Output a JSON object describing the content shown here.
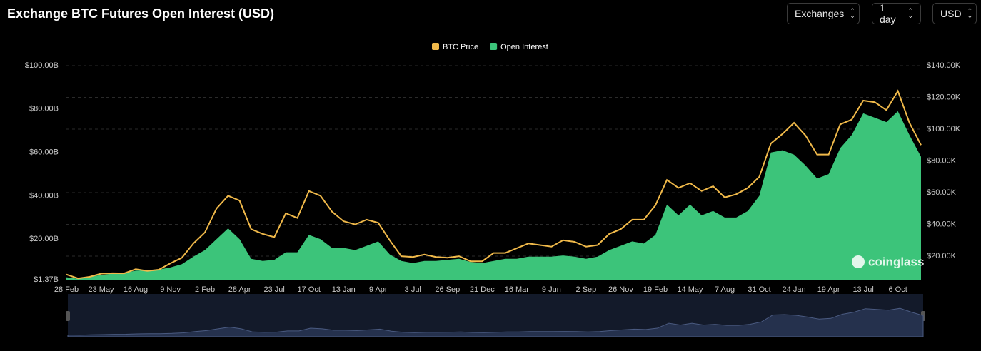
{
  "controls": [
    "Exchanges",
    "1 day",
    "USD"
  ],
  "chart_data": {
    "type": "line",
    "title": "Exchange BTC Futures Open Interest (USD)",
    "watermark": "coinglass",
    "categories": [
      "28 Feb",
      null,
      null,
      "23 May",
      null,
      null,
      "16 Aug",
      null,
      null,
      "9 Nov",
      null,
      null,
      "2 Feb",
      null,
      null,
      "28 Apr",
      null,
      null,
      "23 Jul",
      null,
      null,
      "17 Oct",
      null,
      null,
      "13 Jan",
      null,
      null,
      "9 Apr",
      null,
      null,
      "3 Jul",
      null,
      null,
      "26 Sep",
      null,
      null,
      "21 Dec",
      null,
      null,
      "16 Mar",
      null,
      null,
      "9 Jun",
      null,
      null,
      "2 Sep",
      null,
      null,
      "26 Nov",
      null,
      null,
      "19 Feb",
      null,
      null,
      "14 May",
      null,
      null,
      "7 Aug",
      null,
      null,
      "31 Oct",
      null,
      null,
      "24 Jan",
      null,
      null,
      "19 Apr",
      null,
      null,
      "13 Jul",
      null,
      null,
      "6 Oct",
      null,
      null
    ],
    "series": [
      {
        "name": "BTC Price",
        "color": "#f0b94a",
        "axis": "y2",
        "values": [
          8.5,
          6,
          7,
          9,
          9.3,
          9.2,
          11.8,
          10.7,
          11.5,
          15.5,
          19,
          28,
          35,
          50,
          58,
          55,
          37,
          34,
          32,
          47,
          44,
          61,
          58,
          48,
          42,
          40,
          43,
          41,
          30,
          20,
          19.5,
          21,
          19.5,
          19,
          20,
          16.8,
          16.8,
          22,
          22,
          25,
          28,
          27,
          26,
          30,
          29,
          26,
          27,
          34,
          37,
          43,
          43,
          52,
          68,
          63,
          66,
          61,
          64,
          57,
          59,
          63,
          70,
          91,
          97,
          104,
          96,
          84,
          84,
          103,
          106,
          118,
          117,
          112,
          124,
          104,
          90
        ]
      },
      {
        "name": "Open Interest",
        "color": "#3cc47a",
        "values": [
          2.5,
          1.8,
          2.8,
          3.5,
          4.2,
          4.5,
          5.5,
          5.8,
          6,
          7,
          8.5,
          12,
          15,
          20,
          25,
          20,
          11,
          10,
          10.5,
          14,
          14,
          22,
          20,
          16,
          16,
          15,
          17,
          19,
          13,
          10,
          9,
          10,
          10,
          10.5,
          11,
          9.5,
          9,
          10,
          11,
          11,
          12,
          12,
          12,
          12.5,
          12,
          11,
          12,
          15,
          17,
          19,
          18,
          22,
          36,
          31,
          36,
          31,
          33,
          30,
          30,
          33,
          40,
          60,
          61,
          59,
          54,
          48,
          50,
          62,
          68,
          78,
          76,
          74,
          79,
          68,
          58
        ]
      }
    ],
    "ylim": [
      1.37,
      100
    ],
    "yticks": [
      {
        "value": 1.37,
        "label": "$1.37B"
      },
      {
        "value": 20,
        "label": "$20.00B"
      },
      {
        "value": 40,
        "label": "$40.00B"
      },
      {
        "value": 60,
        "label": "$60.00B"
      },
      {
        "value": 80,
        "label": "$80.00B"
      },
      {
        "value": 100,
        "label": "$100.00B"
      }
    ],
    "y2lim": [
      5.2,
      140
    ],
    "y2ticks": [
      {
        "value": 20,
        "label": "$20.00K"
      },
      {
        "value": 40,
        "label": "$40.00K"
      },
      {
        "value": 60,
        "label": "$60.00K"
      },
      {
        "value": 80,
        "label": "$80.00K"
      },
      {
        "value": 100,
        "label": "$100.00K"
      },
      {
        "value": 120,
        "label": "$120.00K"
      },
      {
        "value": 140,
        "label": "$140.00K"
      }
    ],
    "grid": true
  }
}
